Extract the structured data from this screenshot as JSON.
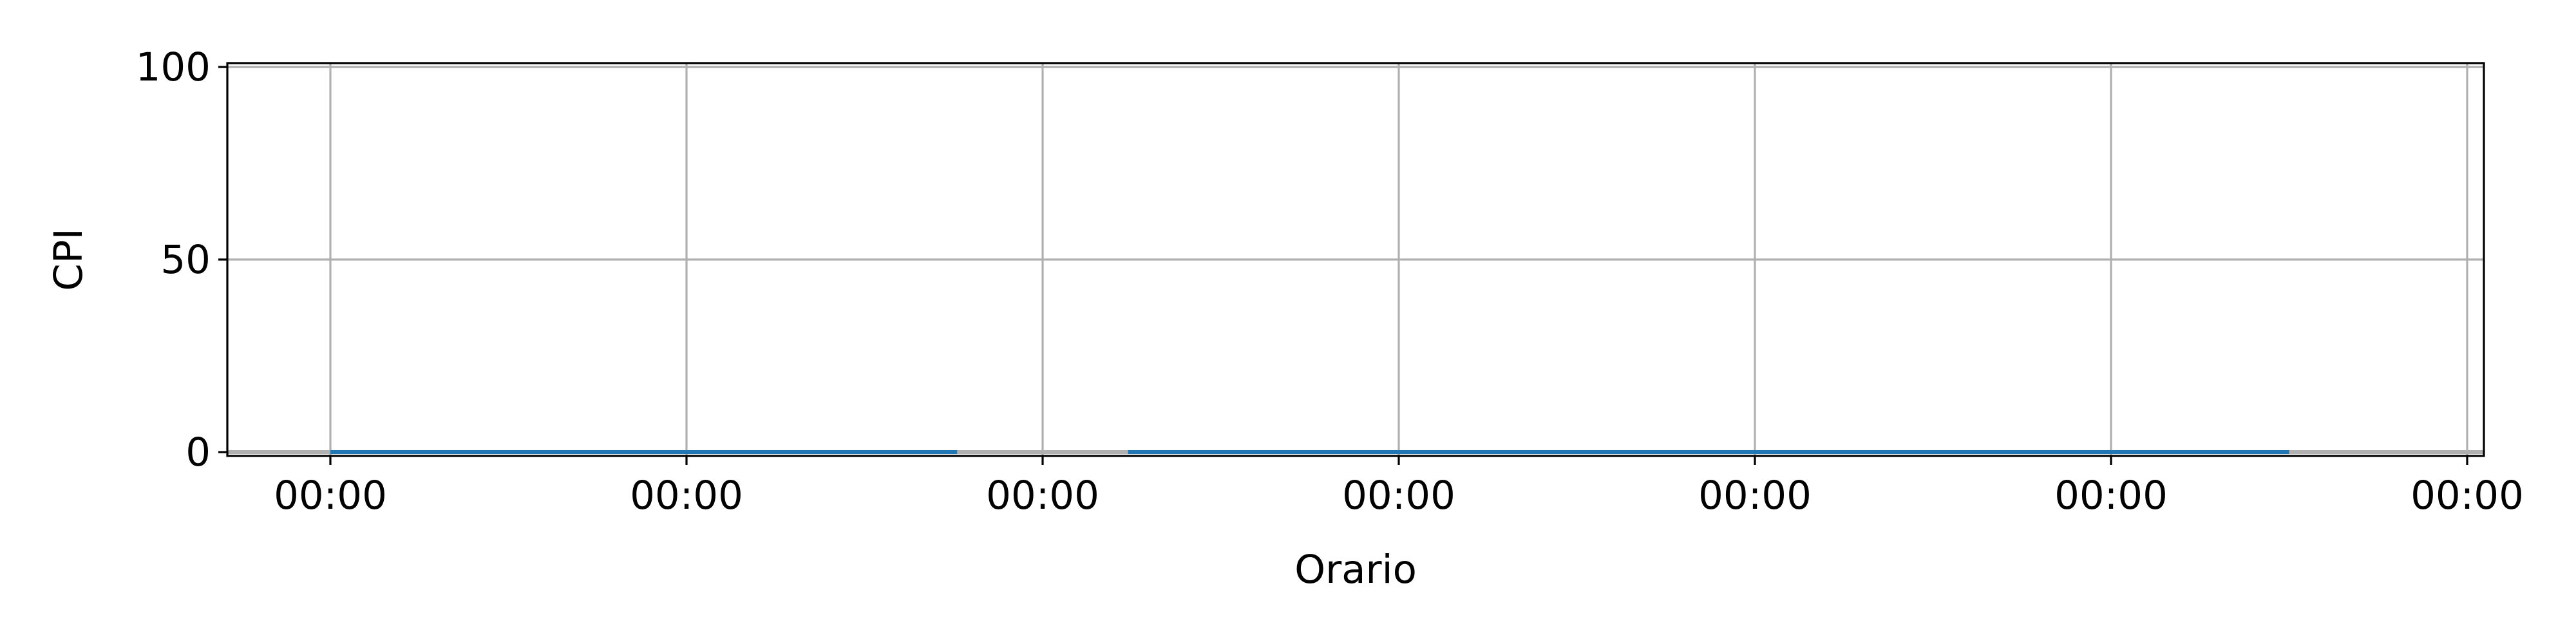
{
  "chart_data": {
    "type": "line",
    "title": "",
    "xlabel": "Orario",
    "ylabel": "CPI",
    "x_tick_labels": [
      "00:00",
      "00:00",
      "00:00",
      "00:00",
      "00:00",
      "00:00",
      "00:00"
    ],
    "y_ticks": [
      0,
      50,
      100
    ],
    "ylim": [
      -1,
      101
    ],
    "grid": true,
    "legend": "none",
    "series": [
      {
        "color": "#1f77b4",
        "segments": [
          {
            "x": [
              0,
              1.76
            ],
            "y": [
              0,
              0
            ]
          },
          {
            "x": [
              2.24,
              5.5
            ],
            "y": [
              0,
              0
            ]
          }
        ]
      }
    ],
    "baseline": {
      "color": "#b0b0b0",
      "y": 0
    }
  }
}
